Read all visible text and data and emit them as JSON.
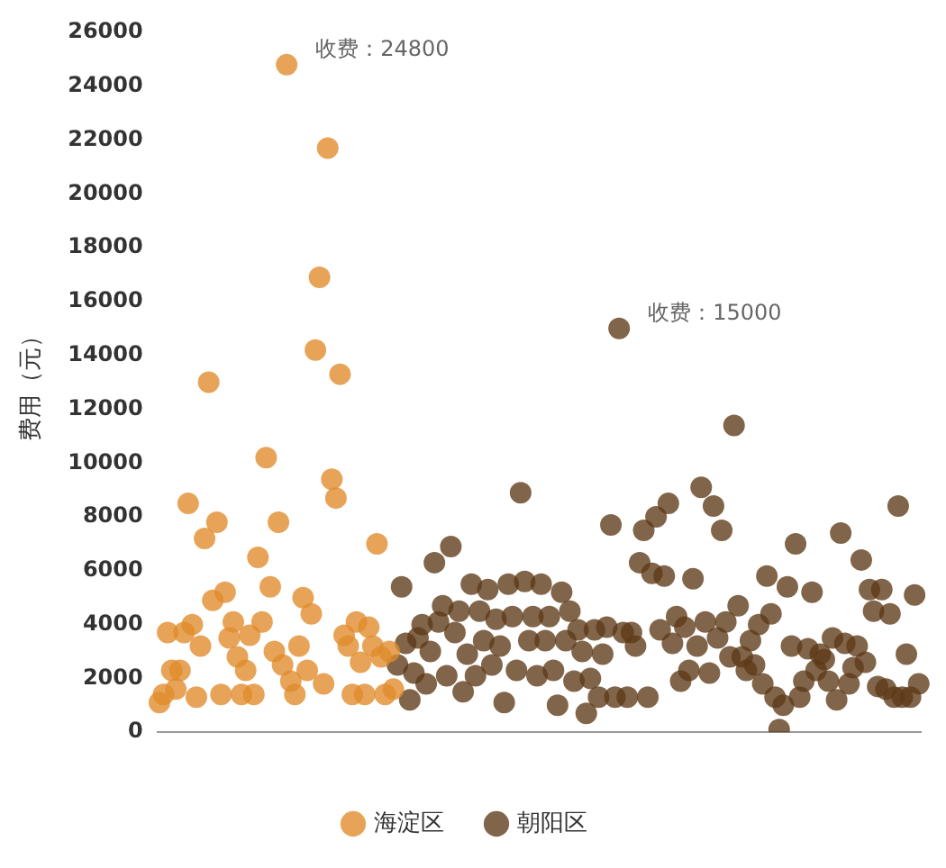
{
  "chart_data": {
    "type": "scatter",
    "ylabel": "费用（元）",
    "categories": [
      null,
      null,
      null,
      null,
      null,
      null,
      null,
      null,
      null,
      null,
      null,
      null,
      null,
      null,
      null,
      null,
      null,
      null,
      null,
      null,
      null,
      null,
      null,
      null,
      null,
      null,
      null,
      null,
      null,
      null,
      null,
      null,
      null,
      null,
      null,
      null,
      null,
      null,
      null,
      null,
      null,
      null,
      null,
      null,
      null,
      null,
      null,
      null,
      null,
      null,
      null,
      null,
      null,
      null,
      null,
      null,
      null,
      null,
      null,
      null,
      null,
      null,
      null,
      null,
      null,
      null,
      null,
      null,
      null,
      null,
      null,
      null,
      null,
      null,
      null,
      null,
      null,
      null,
      null,
      null,
      null,
      null,
      null,
      null,
      null,
      null,
      null,
      null,
      null,
      null,
      null,
      null,
      null,
      null,
      null,
      null,
      null,
      null,
      null,
      null,
      null,
      null,
      null,
      null,
      null,
      null,
      null,
      null,
      null,
      null,
      null,
      null,
      null,
      null,
      null,
      null,
      null,
      null,
      null,
      null,
      null,
      null,
      null,
      null,
      null,
      null,
      null,
      null,
      null,
      null,
      null,
      null,
      null,
      null,
      null,
      null,
      null,
      null,
      null,
      null,
      null,
      null,
      null,
      null,
      null,
      null,
      null,
      null,
      null,
      null,
      null,
      null,
      null,
      null,
      null,
      null,
      null,
      null,
      null,
      null,
      null,
      null,
      null,
      null,
      null,
      null,
      null,
      null,
      null,
      null,
      null,
      null,
      null,
      null,
      null,
      null,
      null,
      null,
      null,
      null,
      null,
      null,
      null,
      null,
      null,
      null
    ],
    "series": [
      {
        "name": "海淀区",
        "color": "#e08a2a",
        "values": [
          1100,
          1400,
          3700,
          2300,
          1600,
          2300,
          3700,
          8500,
          4000,
          1300,
          3200,
          7200,
          13000,
          4900,
          7800,
          1400,
          5200,
          3500,
          4100,
          2800,
          1400,
          2300,
          3600,
          1400,
          6500,
          4100,
          10200,
          5400,
          3000,
          7800,
          2500,
          24800,
          1900,
          1400,
          3200,
          5000,
          2300,
          4400,
          14200,
          16900,
          1800,
          21700,
          9400,
          8700,
          13300,
          3600,
          3200,
          1400,
          4100,
          2600,
          1400,
          3900,
          3200,
          7000,
          2800,
          1400,
          3000,
          1600,
          null,
          null,
          null,
          null,
          null,
          null,
          null,
          null,
          null,
          null,
          null,
          null,
          null,
          null,
          null,
          null,
          null,
          null,
          null,
          null,
          null,
          null,
          null,
          null,
          null,
          null,
          null,
          null,
          null,
          null,
          null,
          null,
          null,
          null,
          null,
          null,
          null,
          null,
          null,
          null,
          null,
          null,
          null,
          null,
          null,
          null,
          null,
          null,
          null,
          null,
          null,
          null,
          null,
          null,
          null,
          null,
          null,
          null,
          null,
          null,
          null,
          null,
          null,
          null,
          null,
          null,
          null,
          null,
          null,
          null,
          null,
          null,
          null,
          null,
          null,
          null,
          null,
          null,
          null,
          null,
          null,
          null,
          null,
          null,
          null,
          null,
          null,
          null,
          null,
          null,
          null,
          null,
          null,
          null,
          null,
          null,
          null,
          null,
          null,
          null,
          null,
          null,
          null,
          null,
          null,
          null,
          null,
          null,
          null,
          null,
          null,
          null,
          null,
          null,
          null,
          null,
          null,
          null,
          null,
          null,
          null,
          null,
          null,
          null,
          null,
          null,
          null,
          null
        ]
      },
      {
        "name": "朝阳区",
        "color": "#5e3a17",
        "values": [
          null,
          null,
          null,
          null,
          null,
          null,
          null,
          null,
          null,
          null,
          null,
          null,
          null,
          null,
          null,
          null,
          null,
          null,
          null,
          null,
          null,
          null,
          null,
          null,
          null,
          null,
          null,
          null,
          null,
          null,
          null,
          null,
          null,
          null,
          null,
          null,
          null,
          null,
          null,
          null,
          null,
          null,
          null,
          null,
          null,
          null,
          null,
          null,
          null,
          null,
          null,
          null,
          null,
          null,
          null,
          null,
          null,
          null,
          2500,
          5400,
          3300,
          1200,
          2200,
          3500,
          4000,
          1800,
          3000,
          6300,
          4100,
          4700,
          2100,
          6900,
          3700,
          4500,
          1500,
          2900,
          5500,
          2100,
          4500,
          3400,
          5300,
          2500,
          4200,
          3200,
          1100,
          5500,
          4300,
          2300,
          8900,
          5600,
          3400,
          4300,
          2100,
          5500,
          3400,
          4300,
          2300,
          1000,
          5200,
          3400,
          4500,
          1900,
          3800,
          3000,
          700,
          2000,
          3800,
          1300,
          2900,
          3900,
          7700,
          1300,
          15000,
          3700,
          1300,
          3700,
          3200,
          6300,
          7500,
          1300,
          5900,
          8000,
          3800,
          5800,
          8500,
          3300,
          4300,
          1900,
          3900,
          2300,
          5700,
          3200,
          9100,
          4100,
          2200,
          8400,
          3500,
          7500,
          4100,
          2800,
          11400,
          4700,
          2800,
          2300,
          3400,
          2500,
          4000,
          1800,
          5800,
          4400,
          1300,
          100,
          1000,
          5400,
          3200,
          7000,
          1300,
          1900,
          3100,
          5200,
          2300,
          2900,
          2700,
          1900,
          3500,
          1200,
          7400,
          3300,
          1800,
          2400,
          3200,
          6400,
          2600,
          5300,
          4500,
          1700,
          5300,
          1600,
          4400,
          1300,
          8400,
          1300,
          2900,
          1300,
          5100,
          1800
        ]
      }
    ],
    "ylim": [
      0,
      26000
    ],
    "yticks": [
      0,
      2000,
      4000,
      6000,
      8000,
      10000,
      12000,
      14000,
      16000,
      18000,
      20000,
      22000,
      24000,
      26000
    ],
    "annotations": [
      "收费：24800",
      "收费：15000"
    ],
    "marker": "circle",
    "legend": "bottom",
    "grid": false
  }
}
